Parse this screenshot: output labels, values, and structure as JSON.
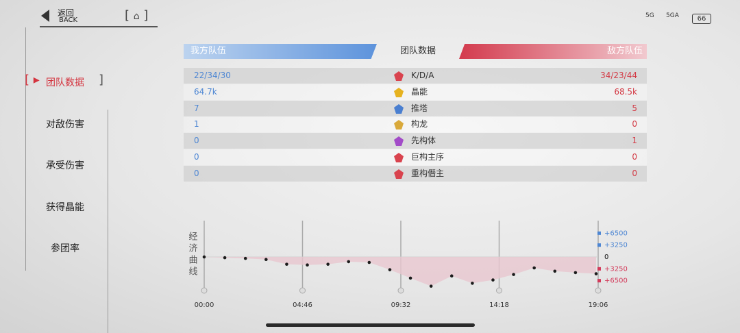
{
  "top_bar": {
    "back": "返回",
    "back_en": "BACK",
    "signal_1": "5G",
    "signal_2": "5GA",
    "battery": "66"
  },
  "sidebar": {
    "items": [
      "团队数据",
      "对敌伤害",
      "承受伤害",
      "获得晶能",
      "参团率"
    ],
    "active": 0
  },
  "header": {
    "left": "我方队伍",
    "center": "团队数据",
    "right": "敌方队伍"
  },
  "table": {
    "rows": [
      [
        "22/34/30",
        "K/D/A",
        "34/23/44"
      ],
      [
        "64.7k",
        "晶能",
        "68.5k"
      ],
      [
        "7",
        "推塔",
        "5"
      ],
      [
        "1",
        "构龙",
        "0"
      ],
      [
        "0",
        "先构体",
        "1"
      ],
      [
        "0",
        "巨构主序",
        "0"
      ],
      [
        "0",
        "重构僭主",
        "0"
      ]
    ]
  },
  "economy_chart": {
    "type": "line",
    "y_label": "经济曲线",
    "x": [
      0,
      60,
      120,
      180,
      240,
      300,
      360,
      420,
      480,
      540,
      600,
      660,
      720,
      780,
      840,
      900,
      960,
      1020,
      1080,
      1140
    ],
    "values": [
      0,
      -200,
      -400,
      -700,
      -2000,
      -2200,
      -2000,
      -1300,
      -1500,
      -3500,
      -5800,
      -8000,
      -5200,
      -7200,
      -6300,
      -4800,
      -3000,
      -3900,
      -4300,
      -4600
    ],
    "xlim": [
      0,
      1146
    ],
    "xticks": [
      {
        "value": 0,
        "label": "00:00"
      },
      {
        "value": 286,
        "label": "04:46"
      },
      {
        "value": 572,
        "label": "09:32"
      },
      {
        "value": 858,
        "label": "14:18"
      },
      {
        "value": 1146,
        "label": "19:06"
      }
    ],
    "ylim": [
      -9000,
      9000
    ],
    "yticks": [
      {
        "value": 6500,
        "label": "+6500"
      },
      {
        "value": 3250,
        "label": "+3250"
      },
      0,
      {
        "value": -3250,
        "label": "+3250"
      },
      {
        "value": -6500,
        "label": "+6500"
      }
    ],
    "color": "#1c1c1c",
    "fill_color": "#e9c7cf"
  }
}
